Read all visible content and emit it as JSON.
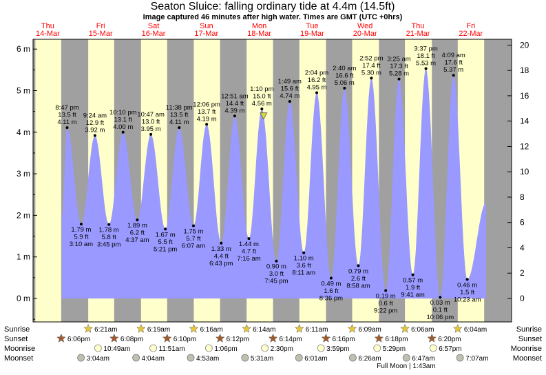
{
  "header": {
    "title": "Seaton Sluice: falling  ordinary tide at 4.4m (14.5ft)",
    "subtitle": "Image captured 46 minutes after high water. Times are GMT (UTC +0hrs)"
  },
  "chart_data": {
    "type": "area",
    "days": [
      {
        "dow": "Thu",
        "date": "14-Mar"
      },
      {
        "dow": "Fri",
        "date": "15-Mar"
      },
      {
        "dow": "Sat",
        "date": "16-Mar"
      },
      {
        "dow": "Sun",
        "date": "17-Mar"
      },
      {
        "dow": "Mon",
        "date": "18-Mar"
      },
      {
        "dow": "Tue",
        "date": "19-Mar"
      },
      {
        "dow": "Wed",
        "date": "20-Mar"
      },
      {
        "dow": "Thu",
        "date": "21-Mar"
      },
      {
        "dow": "Fri",
        "date": "22-Mar"
      }
    ],
    "y_left": {
      "unit": "m",
      "ticks": [
        0,
        1,
        2,
        3,
        4,
        5,
        6
      ],
      "range": [
        -0.5,
        6.2
      ]
    },
    "y_right": {
      "unit": "",
      "ticks": [
        0,
        2,
        4,
        6,
        8,
        10,
        12,
        14,
        16,
        18,
        20
      ]
    },
    "extremes": [
      {
        "type": "high",
        "day": 0,
        "time": "8:47 pm",
        "m": 4.11,
        "ft": "13.5 ft",
        "m_label": "4.11 m"
      },
      {
        "type": "low",
        "day": 1,
        "time": "3:10 am",
        "m": 1.79,
        "ft": "5.9 ft",
        "m_label": "1.79 m"
      },
      {
        "type": "high",
        "day": 1,
        "time": "9:24 am",
        "m": 3.92,
        "ft": "12.9 ft",
        "m_label": "3.92 m"
      },
      {
        "type": "low",
        "day": 1,
        "time": "3:45 pm",
        "m": 1.78,
        "ft": "5.8 ft",
        "m_label": "1.78 m"
      },
      {
        "type": "high",
        "day": 1,
        "time": "10:10 pm",
        "m": 4.0,
        "ft": "13.1 ft",
        "m_label": "4.00 m"
      },
      {
        "type": "low",
        "day": 2,
        "time": "4:37 am",
        "m": 1.89,
        "ft": "6.2 ft",
        "m_label": "1.89 m"
      },
      {
        "type": "high",
        "day": 2,
        "time": "10:47 am",
        "m": 3.95,
        "ft": "13.0 ft",
        "m_label": "3.95 m"
      },
      {
        "type": "low",
        "day": 2,
        "time": "5:21 pm",
        "m": 1.67,
        "ft": "5.5 ft",
        "m_label": "1.67 m"
      },
      {
        "type": "high",
        "day": 2,
        "time": "11:38 pm",
        "m": 4.11,
        "ft": "13.5 ft",
        "m_label": "4.11 m"
      },
      {
        "type": "low",
        "day": 3,
        "time": "6:07 am",
        "m": 1.75,
        "ft": "5.7 ft",
        "m_label": "1.75 m"
      },
      {
        "type": "high",
        "day": 3,
        "time": "12:06 pm",
        "m": 4.19,
        "ft": "13.7 ft",
        "m_label": "4.19 m"
      },
      {
        "type": "low",
        "day": 3,
        "time": "6:43 pm",
        "m": 1.33,
        "ft": "4.4 ft",
        "m_label": "1.33 m"
      },
      {
        "type": "high",
        "day": 4,
        "time": "12:51 am",
        "m": 4.39,
        "ft": "14.4 ft",
        "m_label": "4.39 m"
      },
      {
        "type": "low",
        "day": 4,
        "time": "7:16 am",
        "m": 1.44,
        "ft": "4.7 ft",
        "m_label": "1.44 m"
      },
      {
        "type": "high",
        "day": 4,
        "time": "1:10 pm",
        "m": 4.56,
        "ft": "15.0 ft",
        "m_label": "4.56 m"
      },
      {
        "type": "low",
        "day": 4,
        "time": "7:45 pm",
        "m": 0.9,
        "ft": "3.0 ft",
        "m_label": "0.90 m"
      },
      {
        "type": "high",
        "day": 5,
        "time": "1:49 am",
        "m": 4.74,
        "ft": "15.6 ft",
        "m_label": "4.74 m"
      },
      {
        "type": "low",
        "day": 5,
        "time": "8:11 am",
        "m": 1.1,
        "ft": "3.6 ft",
        "m_label": "1.10 m"
      },
      {
        "type": "high",
        "day": 5,
        "time": "2:04 pm",
        "m": 4.95,
        "ft": "16.2 ft",
        "m_label": "4.95 m"
      },
      {
        "type": "low",
        "day": 5,
        "time": "8:36 pm",
        "m": 0.49,
        "ft": "1.6 ft",
        "m_label": "0.49 m"
      },
      {
        "type": "high",
        "day": 6,
        "time": "2:40 am",
        "m": 5.06,
        "ft": "16.6 ft",
        "m_label": "5.06 m"
      },
      {
        "type": "low",
        "day": 6,
        "time": "8:58 am",
        "m": 0.79,
        "ft": "2.6 ft",
        "m_label": "0.79 m"
      },
      {
        "type": "high",
        "day": 6,
        "time": "2:52 pm",
        "m": 5.3,
        "ft": "17.4 ft",
        "m_label": "5.30 m"
      },
      {
        "type": "low",
        "day": 6,
        "time": "9:22 pm",
        "m": 0.19,
        "ft": "0.6 ft",
        "m_label": "0.19 m"
      },
      {
        "type": "high",
        "day": 7,
        "time": "3:25 am",
        "m": 5.28,
        "ft": "17.3 ft",
        "m_label": "5.28 m"
      },
      {
        "type": "low",
        "day": 7,
        "time": "9:41 am",
        "m": 0.57,
        "ft": "1.9 ft",
        "m_label": "0.57 m"
      },
      {
        "type": "high",
        "day": 7,
        "time": "3:37 pm",
        "m": 5.53,
        "ft": "18.1 ft",
        "m_label": "5.53 m"
      },
      {
        "type": "low",
        "day": 7,
        "time": "10:06 pm",
        "m": 0.03,
        "ft": "0.1 ft",
        "m_label": "0.03 m"
      },
      {
        "type": "high",
        "day": 8,
        "time": "4:09 am",
        "m": 5.37,
        "ft": "17.6 ft",
        "m_label": "5.37 m"
      },
      {
        "type": "low",
        "day": 8,
        "time": "10:23 am",
        "m": 0.46,
        "ft": "1.5 ft",
        "m_label": "0.46 m"
      }
    ],
    "current": {
      "day": 4,
      "time": "1:56 pm",
      "m": 4.4
    },
    "sun": [
      {
        "day": 0,
        "sunset": "6:06pm"
      },
      {
        "day": 1,
        "sunrise": "6:21am",
        "sunset": "6:08pm"
      },
      {
        "day": 2,
        "sunrise": "6:19am",
        "sunset": "6:10pm"
      },
      {
        "day": 3,
        "sunrise": "6:16am",
        "sunset": "6:12pm"
      },
      {
        "day": 4,
        "sunrise": "6:14am",
        "sunset": "6:14pm"
      },
      {
        "day": 5,
        "sunrise": "6:11am",
        "sunset": "6:16pm"
      },
      {
        "day": 6,
        "sunrise": "6:09am",
        "sunset": "6:18pm"
      },
      {
        "day": 7,
        "sunrise": "6:06am",
        "sunset": "6:20pm"
      },
      {
        "day": 8,
        "sunrise": "6:04am"
      }
    ],
    "moonrise": [
      {
        "day": 1,
        "time": "10:49am"
      },
      {
        "day": 2,
        "time": "11:51am"
      },
      {
        "day": 3,
        "time": "1:06pm"
      },
      {
        "day": 4,
        "time": "2:30pm"
      },
      {
        "day": 5,
        "time": "3:59pm"
      },
      {
        "day": 6,
        "time": "5:29pm"
      },
      {
        "day": 7,
        "time": "6:57pm"
      }
    ],
    "moonset": [
      {
        "day": 1,
        "time": "3:04am"
      },
      {
        "day": 2,
        "time": "4:04am"
      },
      {
        "day": 3,
        "time": "4:53am"
      },
      {
        "day": 4,
        "time": "5:31am"
      },
      {
        "day": 5,
        "time": "6:01am"
      },
      {
        "day": 6,
        "time": "6:26am"
      },
      {
        "day": 7,
        "time": "6:47am"
      },
      {
        "day": 8,
        "time": "7:07am"
      }
    ],
    "row_labels": {
      "sunrise": "Sunrise",
      "sunset": "Sunset",
      "moonrise": "Moonrise",
      "moonset": "Moonset"
    },
    "phase_note": "Full Moon | 1:43am",
    "colors": {
      "day": "#ffffcc",
      "night": "#a0a0a0",
      "water": "#9999ff",
      "day_names": "#ff0000",
      "sun_icon": "#e8c83a",
      "sunset_icon": "#a05a2c",
      "moonrise_icon": "#ffffcc",
      "moonset_icon": "#c0c0b0"
    }
  }
}
